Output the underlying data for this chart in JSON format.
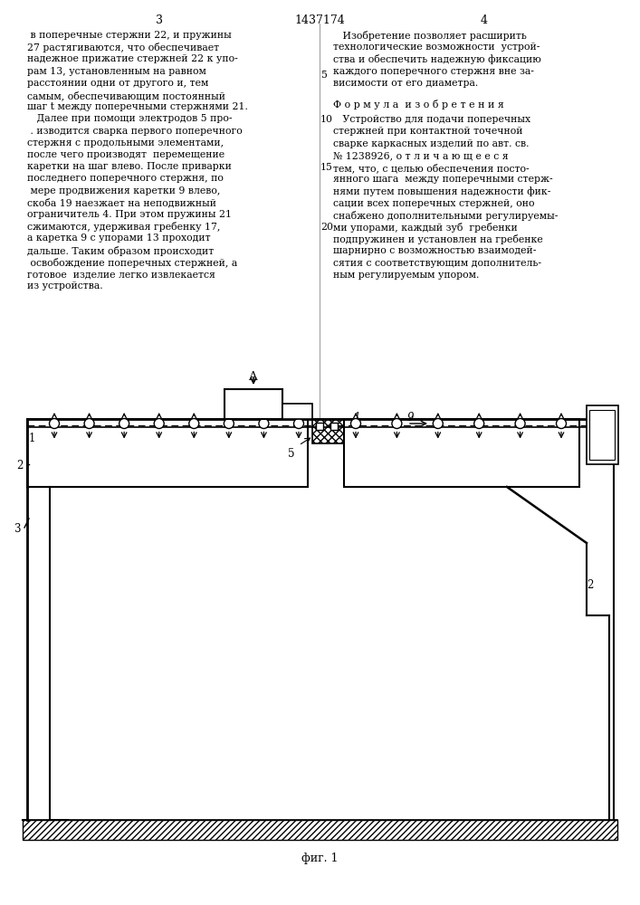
{
  "page_number_left": "3",
  "patent_number": "1437174",
  "page_number_right": "4",
  "left_col_lines": [
    " в поперечные стержни 22, и пружины",
    "27 растягиваются, что обеспечивает",
    "надежное прижатие стержней 22 к упо-",
    "рам 13, установленным на равном",
    "расстоянии одни от другого и, тем",
    "самым, обеспечивающим постоянный",
    "шаг t между поперечными стержнями 21.",
    "   Далее при помощи электродов 5 про-",
    " . изводится сварка первого поперечного",
    "стержня с продольными элементами,",
    "после чего производят  перемещение",
    "каретки на шаг влево. После приварки",
    "последнего поперечного стержня, по",
    " мере продвижения каретки 9 влево,",
    "скоба 19 наезжает на неподвижный",
    "ограничитель 4. При этом пружины 21",
    "сжимаются, удерживая гребенку 17,",
    "а каретка 9 с упорами 13 проходит",
    "дальше. Таким образом происходит",
    " освобождение поперечных стержней, а",
    "готовое  изделие легко извлекается",
    "из устройства."
  ],
  "right_col_lines": [
    "   Изобретение позволяет расширить",
    "технологические возможности  устрой-",
    "ства и обеспечить надежную фиксацию",
    "каждого поперечного стержня вне за-",
    "висимости от его диаметра."
  ],
  "formula_header": "Ф о р м у л а  и з о б р е т е н и я",
  "formula_lines": [
    "   Устройство для подачи поперечных",
    "стержней при контактной точечной",
    "сварке каркасных изделий по авт. св.",
    "№ 1238926, о т л и ч а ю щ е е с я",
    "тем, что, с целью обеспечения посто-",
    "янного шага  между поперечными стерж-",
    "нями путем повышения надежности фик-",
    "сации всех поперечных стержней, оно",
    "снабжено дополнительными регулируемы-",
    "ми упорами, каждый зуб  гребенки",
    "подпружинен и установлен на гребенке",
    "шарнирно с возможностью взаимодей-",
    "сятия с соответствующим дополнитель-",
    "ным регулируемым упором."
  ],
  "fig_label": "фиг. 1",
  "bg": "#ffffff",
  "fg": "#000000",
  "fs": 7.8
}
